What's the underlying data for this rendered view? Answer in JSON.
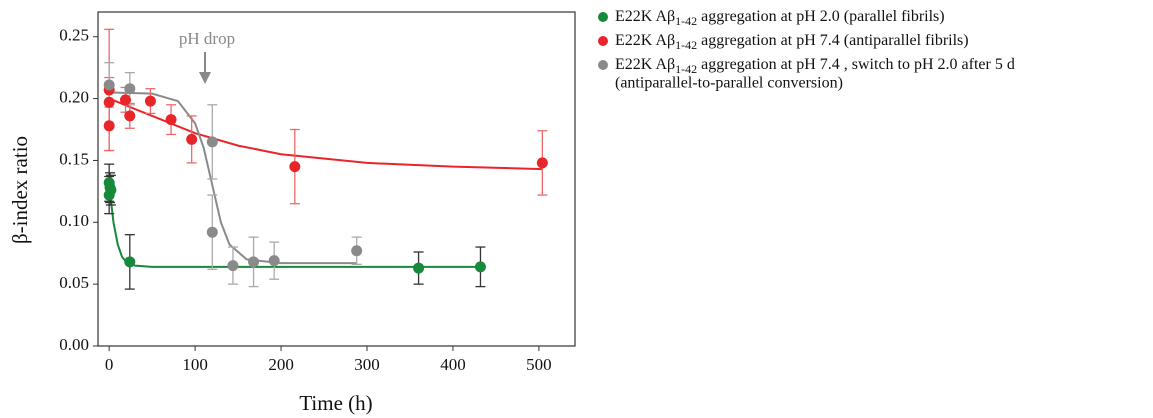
{
  "chart_data": {
    "type": "scatter",
    "xlabel": "Time (h)",
    "ylabel": "β-index ratio",
    "annotation": "pH drop",
    "xlim": [
      -13,
      542
    ],
    "ylim": [
      0,
      0.27
    ],
    "xticks": [
      0,
      100,
      200,
      300,
      400,
      500
    ],
    "yticks": [
      {
        "value": 0,
        "label": "0.00"
      },
      0.05,
      {
        "value": 0.1,
        "label": "0.10"
      },
      0.15,
      {
        "value": 0.2,
        "label": "0.20"
      },
      0.25
    ],
    "series": [
      {
        "name": "E22K Aβ",
        "name_sub": "1-42",
        "name_rest": " aggregation at pH 2.0 (parallel fibrils)",
        "color": "#17893b",
        "error_color": "#333333",
        "x": [
          0,
          0,
          1,
          2,
          24,
          360,
          432
        ],
        "values": [
          0.122,
          0.132,
          0.128,
          0.126,
          0.068,
          0.063,
          0.064
        ],
        "errors": [
          0.015,
          0.015,
          0.012,
          0.012,
          0.022,
          0.013,
          0.016
        ],
        "fit": {
          "x": [
            0,
            5,
            10,
            15,
            20,
            30,
            50,
            432
          ],
          "values": [
            0.13,
            0.1,
            0.082,
            0.072,
            0.068,
            0.065,
            0.064,
            0.064
          ]
        }
      },
      {
        "name": "E22K Aβ",
        "name_sub": "1-42",
        "name_rest": " aggregation at pH 7.4 (antiparallel fibrils)",
        "color": "#e8262a",
        "error_color": "#ee6a6a",
        "x": [
          0,
          0,
          0,
          19,
          24,
          48,
          72,
          96,
          216,
          504
        ],
        "values": [
          0.207,
          0.197,
          0.178,
          0.199,
          0.186,
          0.198,
          0.183,
          0.167,
          0.145,
          0.148
        ],
        "errors": [
          0.049,
          0.02,
          0.02,
          0.01,
          0.01,
          0.01,
          0.012,
          0.019,
          0.03,
          0.026
        ],
        "fit": {
          "x": [
            0,
            50,
            100,
            150,
            200,
            300,
            400,
            504
          ],
          "values": [
            0.2,
            0.186,
            0.172,
            0.162,
            0.155,
            0.148,
            0.145,
            0.143
          ]
        }
      },
      {
        "name": "E22K Aβ",
        "name_sub": "1-42",
        "name_rest": " aggregation at pH 7.4 , switch to pH 2.0 after 5 d",
        "name_line2": "(antiparallel-to-parallel conversion)",
        "color": "#8a8a8a",
        "error_color": "#aaaaaa",
        "x": [
          0,
          24,
          120,
          120,
          144,
          168,
          192,
          288
        ],
        "values": [
          0.211,
          0.208,
          0.165,
          0.092,
          0.065,
          0.068,
          0.069,
          0.077
        ],
        "errors": [
          0.018,
          0.013,
          0.03,
          0.03,
          0.015,
          0.02,
          0.015,
          0.011
        ],
        "fit": {
          "x": [
            0,
            50,
            80,
            100,
            110,
            120,
            130,
            140,
            160,
            200,
            288
          ],
          "values": [
            0.205,
            0.204,
            0.198,
            0.18,
            0.16,
            0.13,
            0.1,
            0.082,
            0.07,
            0.067,
            0.067
          ]
        }
      }
    ]
  }
}
